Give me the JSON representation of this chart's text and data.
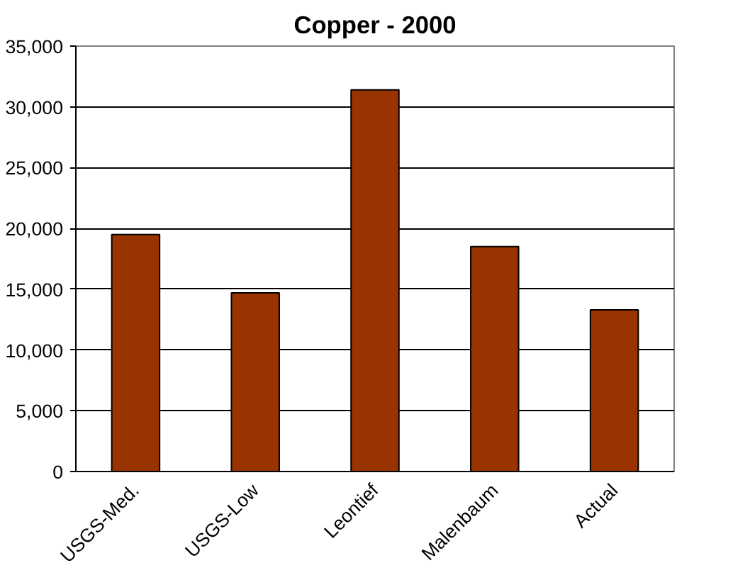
{
  "chart_data": {
    "type": "bar",
    "title": "Copper - 2000",
    "categories": [
      "USGS-Med.",
      "USGS-Low",
      "Leontief",
      "Malenbaum",
      "Actual"
    ],
    "values": [
      19500,
      14700,
      31400,
      18500,
      13300
    ],
    "color": "#993300",
    "ylim": [
      0,
      35000
    ],
    "yticks": [
      {
        "value": 0,
        "label": "0"
      },
      {
        "value": 5000,
        "label": "5,000"
      },
      {
        "value": 10000,
        "label": "10,000"
      },
      {
        "value": 15000,
        "label": "15,000"
      },
      {
        "value": 20000,
        "label": "20,000"
      },
      {
        "value": 25000,
        "label": "25,000"
      },
      {
        "value": 30000,
        "label": "30,000"
      },
      {
        "value": 35000,
        "label": "35,000"
      }
    ],
    "grid": "y"
  }
}
